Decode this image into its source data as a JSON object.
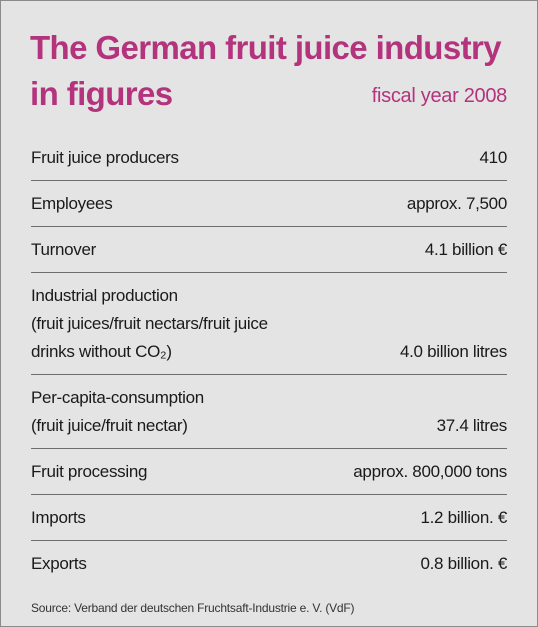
{
  "header": {
    "title_lines": [
      "The German fruit juice industry",
      "in figures"
    ],
    "subtitle": "fiscal year 2008"
  },
  "table": {
    "rows": [
      {
        "label_lines": [
          "Fruit juice producers"
        ],
        "value": "410"
      },
      {
        "label_lines": [
          "Employees"
        ],
        "value": "approx. 7,500"
      },
      {
        "label_lines": [
          "Turnover"
        ],
        "value": "4.1 billion €"
      },
      {
        "label_lines": [
          "Industrial production",
          "(fruit juices/fruit nectars/fruit juice",
          "drinks without CO₂)"
        ],
        "value": "4.0 billion litres"
      },
      {
        "label_lines": [
          "Per-capita-consumption",
          "(fruit juice/fruit nectar)"
        ],
        "value": "37.4 litres"
      },
      {
        "label_lines": [
          "Fruit processing"
        ],
        "value": "approx. 800,000 tons"
      },
      {
        "label_lines": [
          "Imports"
        ],
        "value": "1.2 billion. €"
      },
      {
        "label_lines": [
          "Exports"
        ],
        "value": "0.8 billion. €"
      }
    ]
  },
  "footer": {
    "source": "Source: Verband der deutschen Fruchtsaft-Industrie e. V. (VdF)"
  }
}
